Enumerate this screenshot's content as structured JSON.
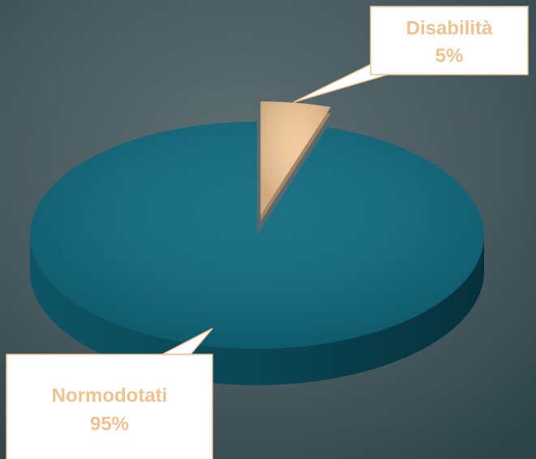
{
  "chart_data": {
    "type": "pie",
    "categories": [
      "Disabilità",
      "Normodotati"
    ],
    "values": [
      5,
      95
    ],
    "value_labels": [
      "5%",
      "95%"
    ],
    "colors": [
      "#f2c89a",
      "#0f6a7f"
    ]
  }
}
